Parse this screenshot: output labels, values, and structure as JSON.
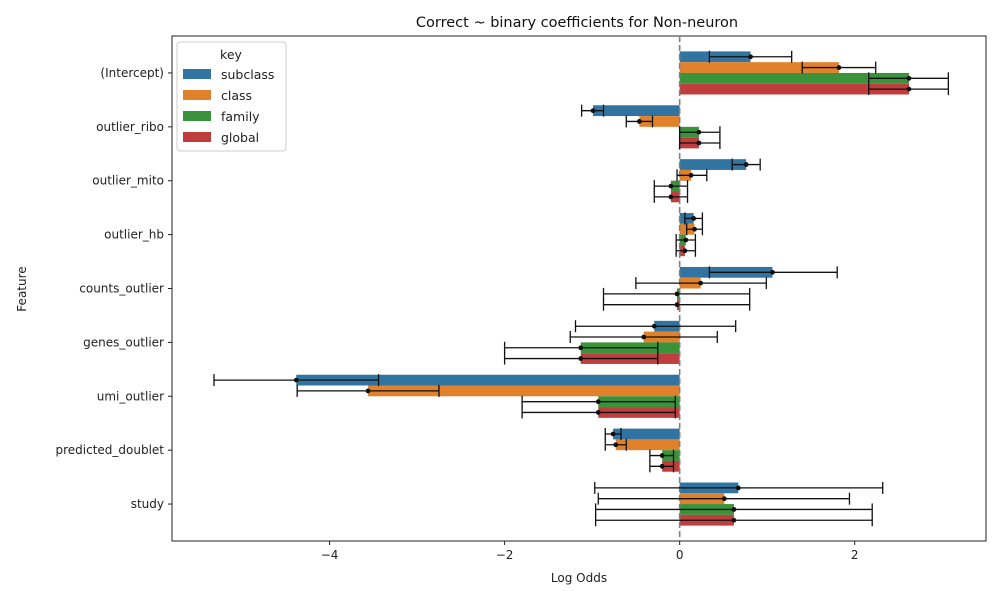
{
  "chart_data": {
    "type": "bar",
    "orientation": "horizontal",
    "title": "Correct ~ binary coefficients for Non-neuron",
    "xlabel": "Log Odds",
    "ylabel": "Feature",
    "xlim": [
      -5.8,
      3.5
    ],
    "xticks": [
      -4,
      -2,
      0,
      2
    ],
    "reference_line": 0,
    "legend": {
      "title": "key",
      "placement": "top-left"
    },
    "categories": [
      "(Intercept)",
      "outlier_ribo",
      "outlier_mito",
      "outlier_hb",
      "counts_outlier",
      "genes_outlier",
      "umi_outlier",
      "predicted_doublet",
      "study"
    ],
    "series": [
      {
        "name": "subclass",
        "color": "#3274a1",
        "values": [
          0.81,
          -0.99,
          0.76,
          0.16,
          1.06,
          -0.29,
          -4.38,
          -0.76,
          0.67
        ],
        "ci_low": [
          0.34,
          -1.12,
          0.6,
          0.06,
          0.34,
          -1.19,
          -5.32,
          -0.85,
          -0.97
        ],
        "ci_high": [
          1.28,
          -0.87,
          0.92,
          0.26,
          1.8,
          0.64,
          -3.44,
          -0.67,
          2.32
        ]
      },
      {
        "name": "class",
        "color": "#e1812c",
        "values": [
          1.82,
          -0.46,
          0.13,
          0.17,
          0.24,
          -0.41,
          -3.56,
          -0.73,
          0.51
        ],
        "ci_low": [
          1.4,
          -0.61,
          -0.03,
          0.08,
          -0.5,
          -1.25,
          -4.37,
          -0.85,
          -0.93
        ],
        "ci_high": [
          2.24,
          -0.31,
          0.31,
          0.26,
          0.99,
          0.43,
          -2.75,
          -0.61,
          1.94
        ]
      },
      {
        "name": "family",
        "color": "#3a923a",
        "values": [
          2.62,
          0.22,
          -0.1,
          0.07,
          -0.03,
          -1.13,
          -0.93,
          -0.2,
          0.62
        ],
        "ci_low": [
          2.16,
          0.0,
          -0.29,
          -0.04,
          -0.87,
          -2.0,
          -1.8,
          -0.34,
          -0.96
        ],
        "ci_high": [
          3.07,
          0.46,
          0.09,
          0.18,
          0.8,
          -0.25,
          -0.05,
          -0.07,
          2.2
        ]
      },
      {
        "name": "global",
        "color": "#c03d3e",
        "values": [
          2.62,
          0.22,
          -0.1,
          0.06,
          -0.03,
          -1.13,
          -0.93,
          -0.2,
          0.62
        ],
        "ci_low": [
          2.16,
          0.0,
          -0.29,
          -0.04,
          -0.87,
          -2.0,
          -1.8,
          -0.34,
          -0.96
        ],
        "ci_high": [
          3.07,
          0.46,
          0.09,
          0.18,
          0.8,
          -0.25,
          -0.05,
          -0.07,
          2.2
        ]
      }
    ]
  }
}
